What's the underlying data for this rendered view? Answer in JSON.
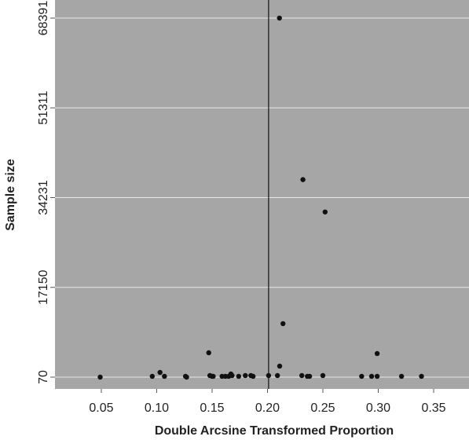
{
  "chart_data": {
    "type": "scatter",
    "x_label": "Double Arcsine Transformed Proportion",
    "y_label": "Sample size",
    "x": [
      0.2108,
      0.232,
      0.252,
      0.214,
      0.147,
      0.299,
      0.211,
      0.049,
      0.096,
      0.103,
      0.107,
      0.126,
      0.127,
      0.148,
      0.15,
      0.151,
      0.159,
      0.162,
      0.165,
      0.167,
      0.168,
      0.174,
      0.18,
      0.185,
      0.187,
      0.201,
      0.209,
      0.231,
      0.236,
      0.238,
      0.25,
      0.285,
      0.294,
      0.299,
      0.321,
      0.339
    ],
    "values": [
      68391,
      37650,
      31500,
      10250,
      4710,
      4560,
      2165,
      70,
      220,
      970,
      220,
      220,
      70,
      370,
      220,
      220,
      220,
      220,
      220,
      670,
      370,
      220,
      370,
      370,
      220,
      370,
      370,
      370,
      220,
      220,
      370,
      220,
      220,
      220,
      220,
      220
    ],
    "color": "#111111",
    "reference_x": 0.201,
    "xlim": [
      0.0082,
      0.3819
    ],
    "ylim": [
      -2175,
      71834
    ],
    "xticks": [
      0.05,
      {
        "value": 0.1,
        "label": "0.10"
      },
      0.15,
      {
        "value": 0.2,
        "label": "0.20"
      },
      0.25,
      {
        "value": 0.3,
        "label": "0.30"
      },
      0.35
    ],
    "yticks": [
      70,
      17150,
      34231,
      51311,
      68391
    ],
    "grid": true,
    "background": "#a6a6a6"
  }
}
